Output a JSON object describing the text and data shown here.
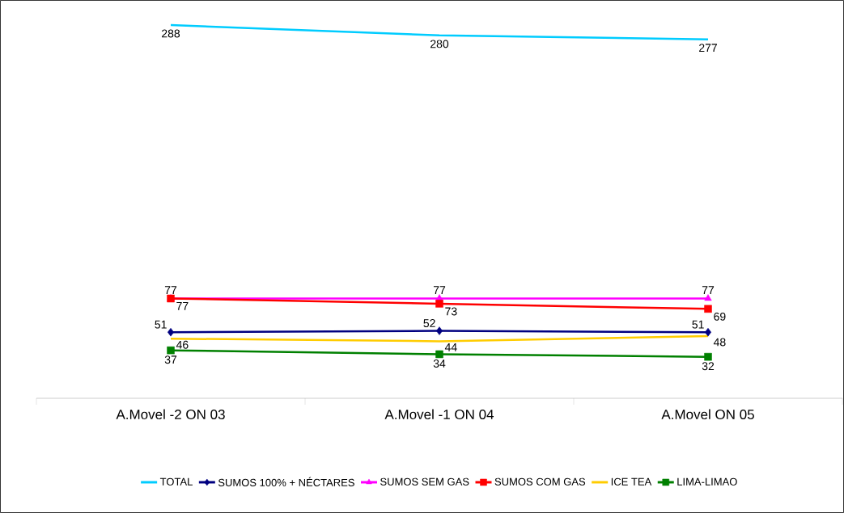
{
  "chart_data": {
    "type": "line",
    "categories": [
      "A.Movel -2 ON 03",
      "A.Movel -1 ON 04",
      "A.Movel ON 05"
    ],
    "data_labels": true,
    "legend": "bottom",
    "grid": false,
    "series": [
      {
        "name": "TOTAL",
        "color": "#00ccff",
        "marker": "none",
        "values": [
          288,
          280,
          277
        ]
      },
      {
        "name": "SUMOS 100% + NÉCTARES",
        "color": "#000080",
        "marker": "diamond",
        "values": [
          51,
          52,
          51
        ]
      },
      {
        "name": "SUMOS SEM GAS",
        "color": "#ff00ff",
        "marker": "triangle",
        "values": [
          77,
          77,
          77
        ]
      },
      {
        "name": "SUMOS COM GAS",
        "color": "#ff0000",
        "marker": "square",
        "values": [
          77,
          73,
          69
        ]
      },
      {
        "name": "ICE TEA",
        "color": "#ffcc00",
        "marker": "none",
        "values": [
          46,
          44,
          48
        ]
      },
      {
        "name": "LIMA-LIMAO",
        "color": "#008000",
        "marker": "square",
        "values": [
          37,
          34,
          32
        ]
      }
    ]
  }
}
